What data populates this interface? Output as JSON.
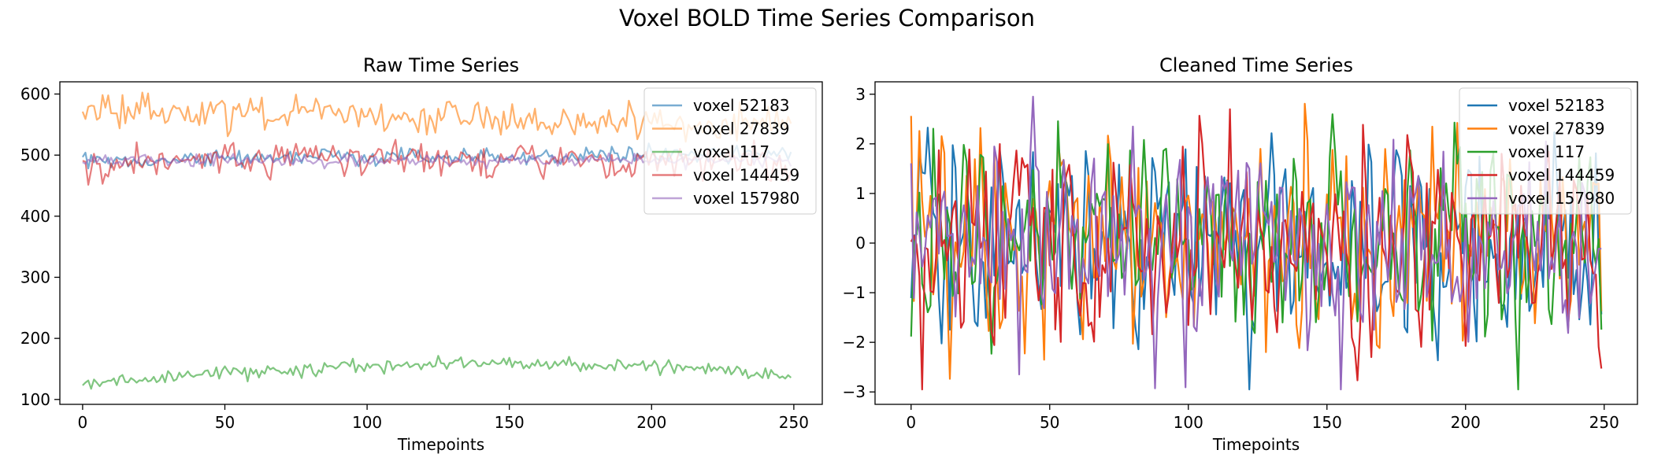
{
  "figure": {
    "title": "Voxel BOLD Time Series Comparison"
  },
  "chart_data": [
    {
      "type": "line",
      "title": "Raw Time Series",
      "xlabel": "Timepoints",
      "ylabel": "",
      "xlim": [
        -8,
        260
      ],
      "ylim": [
        92,
        620
      ],
      "xticks": [
        0,
        50,
        100,
        150,
        200,
        250
      ],
      "yticks": [
        100,
        200,
        300,
        400,
        500,
        600
      ],
      "grid": false,
      "legend_position": "top-right",
      "n_points": 250,
      "series": [
        {
          "name": "voxel 52183",
          "color": "#1f77b4",
          "opacity": 0.6,
          "baseline": [
            490,
            495,
            497,
            498,
            499,
            500
          ],
          "noise": 7
        },
        {
          "name": "voxel 27839",
          "color": "#ff7f0e",
          "opacity": 0.6,
          "baseline": [
            578,
            568,
            563,
            558,
            553,
            548
          ],
          "noise": 14
        },
        {
          "name": "voxel 117",
          "color": "#2ca02c",
          "opacity": 0.6,
          "baseline": [
            125,
            142,
            155,
            160,
            156,
            138
          ],
          "noise": 6
        },
        {
          "name": "voxel 144459",
          "color": "#d62728",
          "opacity": 0.6,
          "baseline": [
            478,
            492,
            494,
            492,
            490,
            492
          ],
          "noise": 15
        },
        {
          "name": "voxel 157980",
          "color": "#9467bd",
          "opacity": 0.6,
          "baseline": [
            492,
            492,
            490,
            491,
            492,
            492
          ],
          "noise": 5
        }
      ]
    },
    {
      "type": "line",
      "title": "Cleaned Time Series",
      "xlabel": "Timepoints",
      "ylabel": "",
      "xlim": [
        -13,
        262
      ],
      "ylim": [
        -3.25,
        3.25
      ],
      "xticks": [
        0,
        50,
        100,
        150,
        200,
        250
      ],
      "yticks": [
        -3,
        -2,
        -1,
        0,
        1,
        2,
        3
      ],
      "grid": false,
      "legend_position": "top-right",
      "n_points": 250,
      "series": [
        {
          "name": "voxel 52183",
          "color": "#1f77b4",
          "opacity": 1,
          "amplitude": 1.0
        },
        {
          "name": "voxel 27839",
          "color": "#ff7f0e",
          "opacity": 1,
          "amplitude": 1.05
        },
        {
          "name": "voxel 117",
          "color": "#2ca02c",
          "opacity": 1,
          "amplitude": 1.0
        },
        {
          "name": "voxel 144459",
          "color": "#d62728",
          "opacity": 1,
          "amplitude": 0.95
        },
        {
          "name": "voxel 157980",
          "color": "#9467bd",
          "opacity": 1,
          "amplitude": 0.95
        }
      ]
    }
  ]
}
